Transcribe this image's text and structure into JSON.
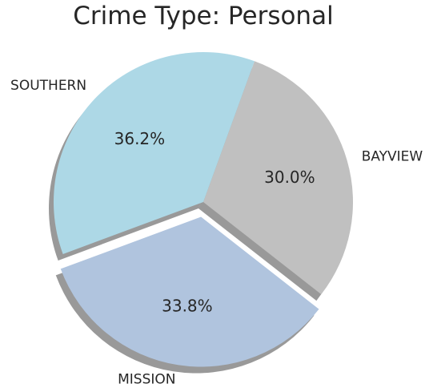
{
  "chart_data": {
    "type": "pie",
    "title": "Crime Type: Personal",
    "labels": [
      "BAYVIEW",
      "MISSION",
      "SOUTHERN"
    ],
    "values": [
      30.0,
      33.8,
      36.2
    ],
    "value_labels": [
      "30.0%",
      "33.8%",
      "36.2%"
    ],
    "colors": [
      "#c0c0c0",
      "#b0c4de",
      "#add8e6"
    ],
    "explode": [
      0,
      0.1,
      0
    ],
    "shadow": true,
    "start_angle_deg": 70,
    "direction": "clockwise"
  }
}
